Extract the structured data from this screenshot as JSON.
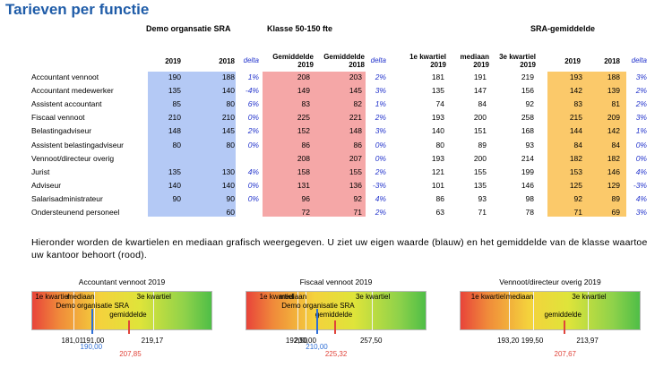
{
  "title": "Tarieven per functie",
  "groups": {
    "demo": "Demo organsatie SRA",
    "klasse": "Klasse 50-150 fte",
    "sra": "SRA-gemiddelde"
  },
  "headers": {
    "y2019": "2019",
    "y2018": "2018",
    "delta": "delta",
    "gem2019": "Gemiddelde 2019",
    "gem2018": "Gemiddelde 2018",
    "q1": "1e kwartiel 2019",
    "median": "mediaan 2019",
    "q3": "3e kwartiel 2019"
  },
  "rows": [
    {
      "label": "Accountant vennoot",
      "d2019": "190",
      "d2018": "188",
      "dd": "1%",
      "k2019": "208",
      "k2018": "203",
      "kd": "2%",
      "q1": "181",
      "med": "191",
      "q3": "219",
      "s2019": "193",
      "s2018": "188",
      "sd": "3%"
    },
    {
      "label": "Accountant medewerker",
      "d2019": "135",
      "d2018": "140",
      "dd": "-4%",
      "k2019": "149",
      "k2018": "145",
      "kd": "3%",
      "q1": "135",
      "med": "147",
      "q3": "156",
      "s2019": "142",
      "s2018": "139",
      "sd": "2%"
    },
    {
      "label": "Assistent accountant",
      "d2019": "85",
      "d2018": "80",
      "dd": "6%",
      "k2019": "83",
      "k2018": "82",
      "kd": "1%",
      "q1": "74",
      "med": "84",
      "q3": "92",
      "s2019": "83",
      "s2018": "81",
      "sd": "2%"
    },
    {
      "label": "Fiscaal vennoot",
      "d2019": "210",
      "d2018": "210",
      "dd": "0%",
      "k2019": "225",
      "k2018": "221",
      "kd": "2%",
      "q1": "193",
      "med": "200",
      "q3": "258",
      "s2019": "215",
      "s2018": "209",
      "sd": "3%"
    },
    {
      "label": "Belastingadviseur",
      "d2019": "148",
      "d2018": "145",
      "dd": "2%",
      "k2019": "152",
      "k2018": "148",
      "kd": "3%",
      "q1": "140",
      "med": "151",
      "q3": "168",
      "s2019": "144",
      "s2018": "142",
      "sd": "1%"
    },
    {
      "label": "Assistent belastingadviseur",
      "d2019": "80",
      "d2018": "80",
      "dd": "0%",
      "k2019": "86",
      "k2018": "86",
      "kd": "0%",
      "q1": "80",
      "med": "89",
      "q3": "93",
      "s2019": "84",
      "s2018": "84",
      "sd": "0%"
    },
    {
      "label": "Vennoot/directeur overig",
      "d2019": "",
      "d2018": "",
      "dd": "",
      "k2019": "208",
      "k2018": "207",
      "kd": "0%",
      "q1": "193",
      "med": "200",
      "q3": "214",
      "s2019": "182",
      "s2018": "182",
      "sd": "0%"
    },
    {
      "label": "Jurist",
      "d2019": "135",
      "d2018": "130",
      "dd": "4%",
      "k2019": "158",
      "k2018": "155",
      "kd": "2%",
      "q1": "121",
      "med": "155",
      "q3": "199",
      "s2019": "153",
      "s2018": "146",
      "sd": "4%"
    },
    {
      "label": "Adviseur",
      "d2019": "140",
      "d2018": "140",
      "dd": "0%",
      "k2019": "131",
      "k2018": "136",
      "kd": "-3%",
      "q1": "101",
      "med": "135",
      "q3": "146",
      "s2019": "125",
      "s2018": "129",
      "sd": "-3%"
    },
    {
      "label": "Salarisadministrateur",
      "d2019": "90",
      "d2018": "90",
      "dd": "0%",
      "k2019": "96",
      "k2018": "92",
      "kd": "4%",
      "q1": "86",
      "med": "93",
      "q3": "98",
      "s2019": "92",
      "s2018": "89",
      "sd": "4%"
    },
    {
      "label": "Ondersteunend personeel",
      "d2019": "",
      "d2018": "60",
      "dd": "",
      "k2019": "72",
      "k2018": "71",
      "kd": "2%",
      "q1": "63",
      "med": "71",
      "q3": "78",
      "s2019": "71",
      "s2018": "69",
      "sd": "3%"
    }
  ],
  "note": "Hieronder worden de kwartielen en mediaan grafisch weergegeven. U ziet uw eigen waarde (blauw) en het gemiddelde van de klasse waartoe uw kantoor behoort (rood).",
  "gauge_labels": {
    "q1": "1e kwartiel",
    "median": "mediaan",
    "q3": "3e kwartiel",
    "own": "Demo organisatie SRA",
    "avg": "gemiddelde"
  },
  "colors": {
    "demo": "#b4c9f5",
    "klasse": "#f5a7a7",
    "sra": "#fbc96a",
    "own_marker": "#2f6fd6",
    "avg_marker": "#e0443a"
  },
  "gauges": [
    {
      "title": "Accountant vennoot 2019",
      "q1": "181,01",
      "median": "191,00",
      "q3": "219,17",
      "own": "190,00",
      "avg": "207,85",
      "q1_v": 181.01,
      "median_v": 191.0,
      "q3_v": 219.17,
      "own_v": 190.0,
      "avg_v": 207.85,
      "min_v": 161.5,
      "max_v": 248
    },
    {
      "title": "Fiscaal vennoot 2019",
      "q1": "192,50",
      "median": "200,00",
      "q3": "257,50",
      "own": "210,00",
      "avg": "225,32",
      "q1_v": 192.5,
      "median_v": 200.0,
      "q3_v": 257.5,
      "own_v": 210.0,
      "avg_v": 225.32,
      "min_v": 148,
      "max_v": 306
    },
    {
      "title": "Vennoot/directeur overig 2019",
      "q1": "193,20",
      "median": "199,50",
      "q3": "213,97",
      "own": "",
      "avg": "207,67",
      "q1_v": 193.2,
      "median_v": 199.5,
      "q3_v": 213.97,
      "own_v": null,
      "avg_v": 207.67,
      "min_v": 180.5,
      "max_v": 228
    }
  ]
}
